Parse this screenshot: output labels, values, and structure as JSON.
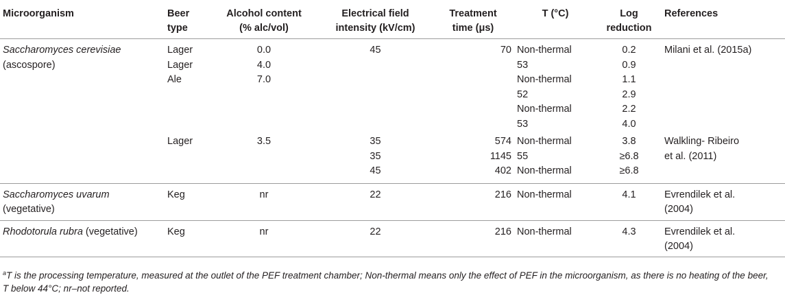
{
  "headers": {
    "microorganism": "Microorganism",
    "beer_type_1": "Beer",
    "beer_type_2": "type",
    "alcohol_1": "Alcohol content",
    "alcohol_2": "(% alc/vol)",
    "field_1": "Electrical field",
    "field_2": "intensity (kV/cm)",
    "time_1": "Treatment",
    "time_2": "time (μs)",
    "temp": "T (°C)",
    "log_1": "Log",
    "log_2": "reduction",
    "refs": "References"
  },
  "rows": {
    "sc": {
      "name_italic": "Saccharomyces cerevisiae",
      "name_sub": "(ascospore)",
      "g1": {
        "beer": [
          "Lager",
          "Lager",
          "Ale"
        ],
        "alcohol": [
          "0.0",
          "4.0",
          "7.0"
        ],
        "field": "45",
        "time": "70",
        "temp": [
          "Non-thermal",
          "53",
          "Non-thermal",
          "52",
          "Non-thermal",
          "53"
        ],
        "log": [
          "0.2",
          "0.9",
          "1.1",
          "2.9",
          "2.2",
          "4.0"
        ],
        "ref": "Milani et al. (2015a)"
      },
      "g2": {
        "beer": "Lager",
        "alcohol": "3.5",
        "field": [
          "35",
          "35",
          "45"
        ],
        "time": [
          "574",
          "1145",
          "402"
        ],
        "temp": [
          "Non-thermal",
          "55",
          "Non-thermal"
        ],
        "log": [
          "3.8",
          "≥6.8",
          "≥6.8"
        ],
        "ref": [
          "Walkling- Ribeiro",
          "et al. (2011)"
        ]
      }
    },
    "su": {
      "name_italic": "Saccharomyces uvarum",
      "name_sub": "(vegetative)",
      "beer": "Keg",
      "alcohol": "nr",
      "field": "22",
      "time": "216",
      "temp": "Non-thermal",
      "log": "4.1",
      "ref": [
        "Evrendilek et al.",
        "(2004)"
      ]
    },
    "rr": {
      "name_italic": "Rhodotorula rubra",
      "name_sub": "(vegetative)",
      "beer": "Keg",
      "alcohol": "nr",
      "field": "22",
      "time": "216",
      "temp": "Non-thermal",
      "log": "4.3",
      "ref": [
        "Evrendilek et al.",
        "(2004)"
      ]
    }
  },
  "footnote": {
    "marker": "a",
    "line1": "T is the processing temperature, measured at the outlet of the PEF treatment chamber; Non-thermal means only the effect of PEF in the microorganism, as there is no heating of the beer,",
    "line2": "T below 44°C; nr–not reported."
  }
}
